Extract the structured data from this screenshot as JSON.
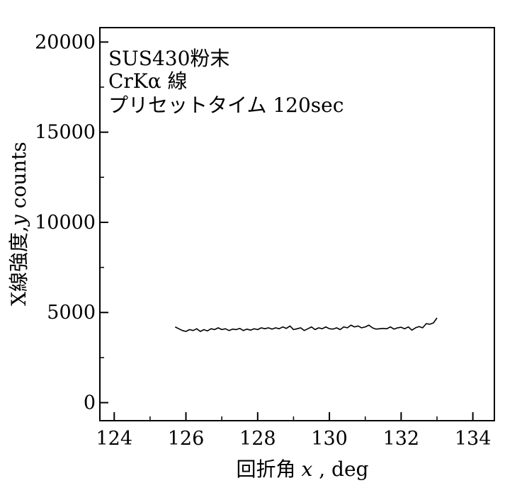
{
  "chart_data": {
    "type": "line",
    "xlabel_main": "回折角",
    "xlabel_var": "x",
    "xlabel_unit": " , deg",
    "ylabel_main": "X線強度,",
    "ylabel_var": "y",
    "ylabel_unit": " counts",
    "xlim": [
      123.6,
      134.6
    ],
    "ylim": [
      -1000,
      20800
    ],
    "x_ticks": [
      124,
      126,
      128,
      130,
      132,
      134
    ],
    "x_tick_labels": [
      "124",
      "126",
      "128",
      "130",
      "132",
      "134"
    ],
    "y_ticks": [
      0,
      5000,
      10000,
      15000,
      20000
    ],
    "y_tick_labels": [
      "0",
      "5000",
      "10000",
      "15000",
      "20000"
    ],
    "annotations": [
      "SUS430粉末",
      "CrKα 線",
      "プリセットタイム 120sec"
    ],
    "grid": false,
    "line_color": "#000000",
    "series": [
      {
        "x": [
          125.7,
          125.8,
          125.9,
          126.0,
          126.1,
          126.2,
          126.3,
          126.4,
          126.5,
          126.6,
          126.7,
          126.8,
          126.9,
          127.0,
          127.1,
          127.2,
          127.3,
          127.4,
          127.5,
          127.6,
          127.7,
          127.8,
          127.9,
          128.0,
          128.1,
          128.2,
          128.3,
          128.4,
          128.5,
          128.6,
          128.7,
          128.8,
          128.9,
          129.0,
          129.1,
          129.2,
          129.3,
          129.4,
          129.5,
          129.6,
          129.7,
          129.8,
          129.9,
          130.0,
          130.1,
          130.2,
          130.3,
          130.4,
          130.5,
          130.6,
          130.7,
          130.8,
          130.9,
          131.0,
          131.1,
          131.2,
          131.3,
          131.4,
          131.5,
          131.6,
          131.7,
          131.8,
          131.9,
          132.0,
          132.1,
          132.2,
          132.3,
          132.4,
          132.5,
          132.6,
          132.7,
          132.8,
          132.9,
          133.0
        ],
        "values": [
          4200,
          4100,
          4000,
          3950,
          4050,
          4000,
          4100,
          3950,
          4050,
          3980,
          4100,
          4050,
          4150,
          4050,
          4100,
          4000,
          4080,
          4050,
          4120,
          4000,
          4080,
          4020,
          4100,
          4050,
          4150,
          4100,
          4150,
          4080,
          4150,
          4100,
          4200,
          4120,
          4250,
          4050,
          4100,
          4150,
          4000,
          4100,
          4200,
          4050,
          4150,
          4100,
          4200,
          4100,
          4080,
          4150,
          4050,
          4200,
          4150,
          4300,
          4200,
          4250,
          4150,
          4200,
          4300,
          4150,
          4080,
          4100,
          4120,
          4100,
          4200,
          4080,
          4150,
          4180,
          4100,
          4200,
          4020,
          4150,
          4220,
          4150,
          4380,
          4350,
          4420,
          4700
        ]
      }
    ]
  }
}
